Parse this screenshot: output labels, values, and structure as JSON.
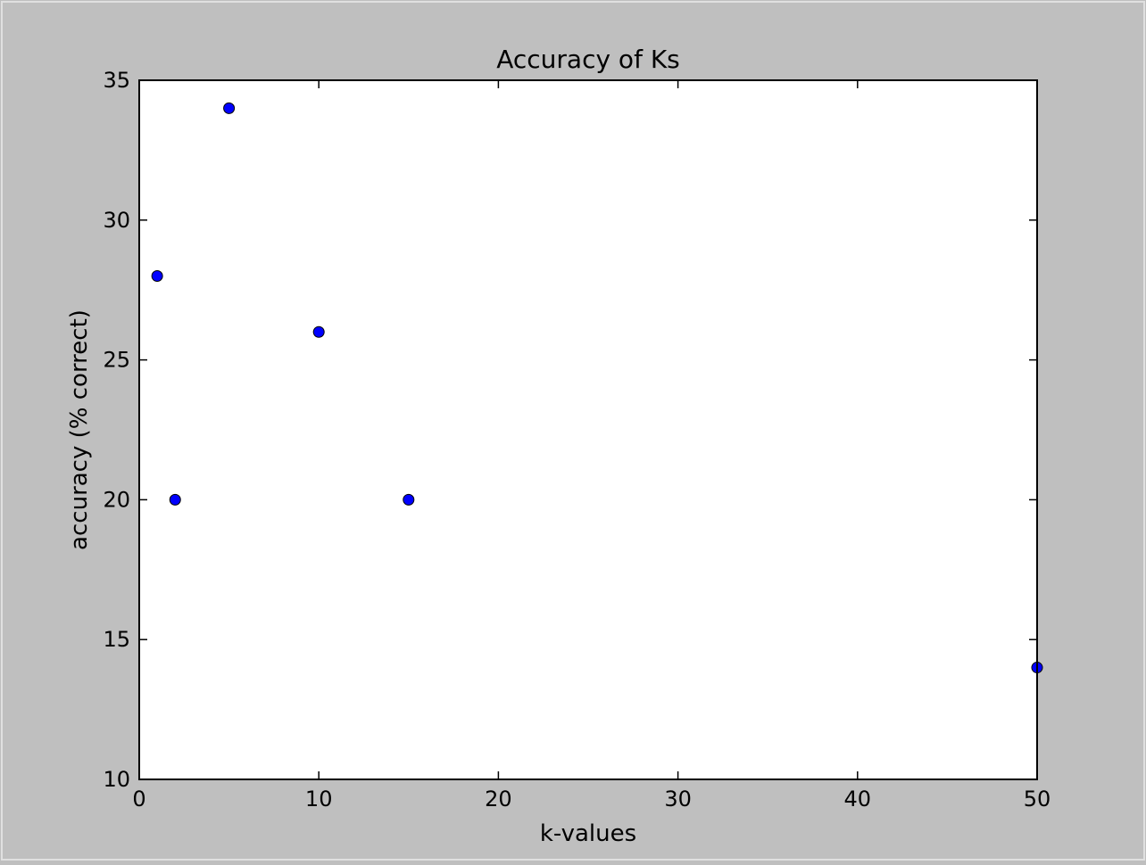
{
  "chart_data": {
    "type": "scatter",
    "title": "Accuracy of Ks",
    "xlabel": "k-values",
    "ylabel": "accuracy (% correct)",
    "xlim": [
      0,
      50
    ],
    "ylim": [
      10,
      35
    ],
    "xticks": [
      0,
      10,
      20,
      30,
      40,
      50
    ],
    "yticks": [
      10,
      15,
      20,
      25,
      30,
      35
    ],
    "grid": false,
    "marker_color": "#0000ff",
    "points": [
      {
        "x": 1,
        "y": 28
      },
      {
        "x": 2,
        "y": 20
      },
      {
        "x": 5,
        "y": 34
      },
      {
        "x": 10,
        "y": 26
      },
      {
        "x": 15,
        "y": 20
      },
      {
        "x": 50,
        "y": 14
      }
    ]
  }
}
